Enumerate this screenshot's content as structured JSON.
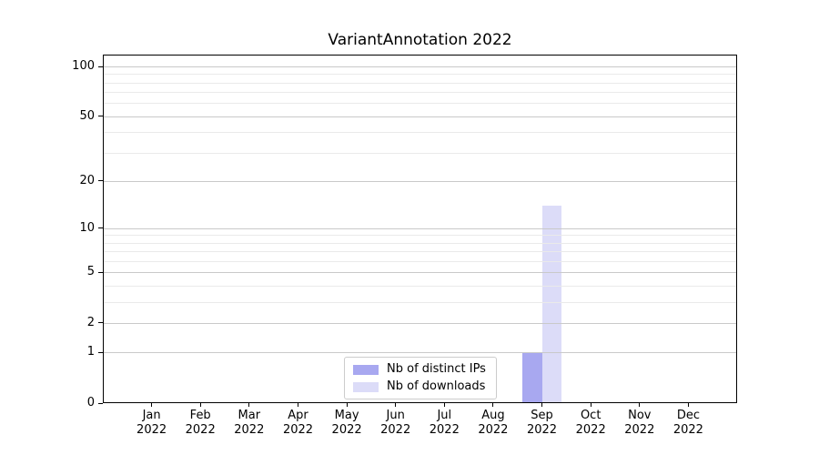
{
  "chart_data": {
    "type": "bar",
    "title": "VariantAnnotation 2022",
    "categories": [
      "Jan",
      "Feb",
      "Mar",
      "Apr",
      "May",
      "Jun",
      "Jul",
      "Aug",
      "Sep",
      "Oct",
      "Nov",
      "Dec"
    ],
    "x_label_year": "2022",
    "series": [
      {
        "name": "Nb of distinct IPs",
        "color": "#a8a8f0",
        "values": [
          0,
          0,
          0,
          0,
          0,
          0,
          0,
          0,
          1,
          0,
          0,
          0
        ]
      },
      {
        "name": "Nb of downloads",
        "color": "#dcdcf8",
        "values": [
          0,
          0,
          0,
          0,
          0,
          0,
          0,
          0,
          14,
          0,
          0,
          0
        ]
      }
    ],
    "y_axis": {
      "scale": "log1p",
      "major_ticks": [
        0,
        1,
        2,
        5,
        10,
        20,
        50,
        100
      ],
      "minor_gridlines": [
        3,
        4,
        6,
        7,
        8,
        9,
        30,
        40,
        60,
        70,
        80,
        90
      ],
      "top_value": 100
    },
    "legend": {
      "location": "inside-bottom-center"
    },
    "colors": {
      "major_grid": "#c9c9c9",
      "minor_grid": "#eaeaea",
      "axis": "#000000",
      "background": "#ffffff",
      "text": "#000000"
    }
  }
}
